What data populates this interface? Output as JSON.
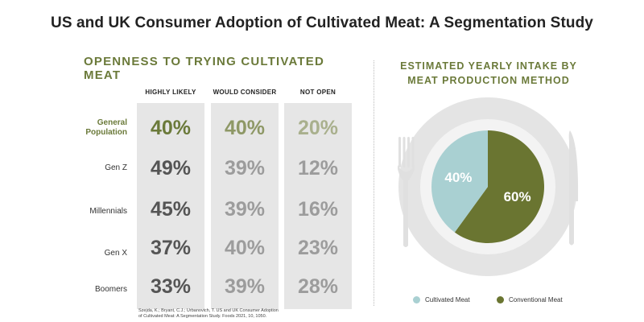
{
  "title": "US and UK Consumer Adoption of Cultivated Meat: A Segmentation Study",
  "left_panel": {
    "heading": "OPENNESS TO TRYING CULTIVATED MEAT",
    "columns": [
      "HIGHLY LIKELY",
      "WOULD CONSIDER",
      "NOT OPEN"
    ],
    "rows": [
      {
        "label_line1": "General",
        "label_line2": "Population",
        "values": [
          "40%",
          "40%",
          "20%"
        ]
      },
      {
        "label_line1": "Gen Z",
        "label_line2": "",
        "values": [
          "49%",
          "39%",
          "12%"
        ]
      },
      {
        "label_line1": "Millennials",
        "label_line2": "",
        "values": [
          "45%",
          "39%",
          "16%"
        ]
      },
      {
        "label_line1": "Gen X",
        "label_line2": "",
        "values": [
          "37%",
          "40%",
          "23%"
        ]
      },
      {
        "label_line1": "Boomers",
        "label_line2": "",
        "values": [
          "33%",
          "39%",
          "28%"
        ]
      }
    ],
    "citation_line1": "Szejda, K.; Bryant, C.J.; Urbanovich, T. US and UK Consumer Adoption",
    "citation_line2": "of Cultivated Meat: A Segmentation Study. Foods 2021, 10, 1050."
  },
  "chart_data": {
    "type": "pie",
    "title": "ESTIMATED YEARLY INTAKE BY MEAT PRODUCTION METHOD",
    "slices": [
      {
        "label": "Cultivated Meat",
        "value": 40,
        "display": "40%",
        "color": "#a9d0d2"
      },
      {
        "label": "Conventional Meat",
        "value": 60,
        "display": "60%",
        "color": "#6a7531"
      }
    ],
    "legend_position": "bottom"
  },
  "colors": {
    "accent_olive": "#6b7a3a",
    "plate": "#e4e4e4",
    "column_bg": "#e6e6e6"
  }
}
